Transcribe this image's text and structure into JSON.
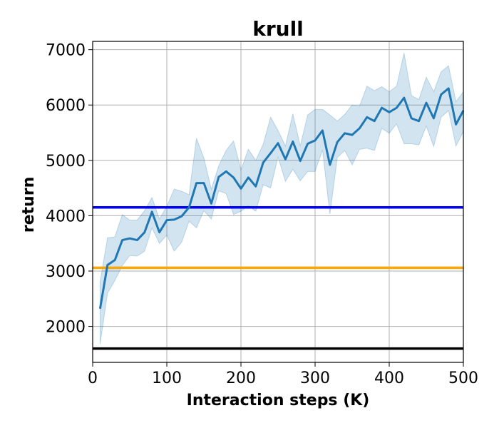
{
  "chart_data": {
    "type": "line",
    "title": "krull",
    "xlabel": "Interaction steps (K)",
    "ylabel": "return",
    "xlim": [
      0,
      500
    ],
    "ylim": [
      1350,
      7150
    ],
    "xticks": [
      "0",
      "100",
      "200",
      "300",
      "400",
      "500"
    ],
    "yticks": [
      "2000",
      "3000",
      "4000",
      "5000",
      "6000",
      "7000"
    ],
    "grid": true,
    "series": [
      {
        "color": "#1f77b4",
        "band_color": "#1f77b4",
        "x": [
          10,
          20,
          30,
          40,
          50,
          60,
          70,
          80,
          90,
          100,
          110,
          120,
          130,
          140,
          150,
          160,
          170,
          180,
          190,
          200,
          210,
          220,
          230,
          240,
          250,
          260,
          270,
          280,
          290,
          300,
          310,
          320,
          330,
          340,
          350,
          360,
          370,
          380,
          390,
          400,
          410,
          420,
          430,
          440,
          450,
          460,
          470,
          480,
          490,
          500
        ],
        "y": [
          2320,
          3110,
          3200,
          3560,
          3590,
          3560,
          3700,
          4070,
          3700,
          3920,
          3930,
          3990,
          4150,
          4590,
          4590,
          4220,
          4700,
          4800,
          4690,
          4490,
          4690,
          4530,
          4960,
          5130,
          5310,
          5020,
          5340,
          4990,
          5300,
          5360,
          5540,
          4920,
          5330,
          5490,
          5460,
          5580,
          5780,
          5710,
          5950,
          5870,
          5950,
          6130,
          5760,
          5710,
          6040,
          5760,
          6190,
          6300,
          5650,
          5900
        ],
        "upper": [
          2800,
          3600,
          3620,
          4020,
          3920,
          3920,
          4090,
          4330,
          3940,
          4170,
          4480,
          4440,
          4380,
          5400,
          5040,
          4480,
          4900,
          5180,
          5350,
          4830,
          5200,
          5000,
          5290,
          5780,
          5540,
          5260,
          5840,
          5260,
          5820,
          5920,
          5920,
          5820,
          5710,
          5830,
          6000,
          5980,
          6340,
          6260,
          6330,
          6240,
          6340,
          6940,
          6170,
          6100,
          6500,
          6240,
          6600,
          6710,
          6060,
          6240
        ],
        "lower": [
          1680,
          2600,
          2830,
          3100,
          3280,
          3270,
          3360,
          3780,
          3500,
          3650,
          3360,
          3520,
          3900,
          3780,
          4090,
          3940,
          4450,
          4400,
          4020,
          4080,
          4180,
          4080,
          4560,
          4500,
          5060,
          4620,
          4840,
          4630,
          4800,
          4800,
          5190,
          4030,
          5050,
          5180,
          4920,
          5200,
          5220,
          5180,
          5580,
          5490,
          5660,
          5300,
          5300,
          5280,
          5620,
          5250,
          5780,
          5900,
          5260,
          5520
        ]
      }
    ],
    "reference_lines": [
      {
        "y": 4150,
        "color": "#0000ff"
      },
      {
        "y": 3060,
        "color": "#ffa500"
      },
      {
        "y": 1600,
        "color": "#000000"
      }
    ]
  }
}
